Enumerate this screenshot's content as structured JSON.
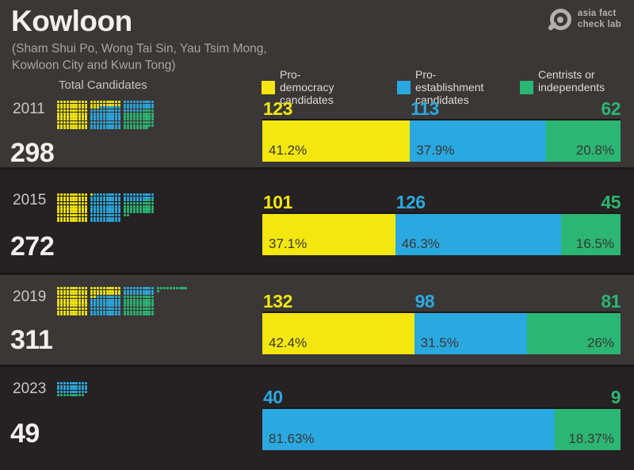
{
  "header": {
    "title": "Kowloon",
    "subtitle": "(Sham Shui Po, Wong Tai Sin, Yau Tsim Mong,\nKowloon City and Kwun Tong)",
    "logo": {
      "name": "asia fact check lab",
      "text": "asia fact\ncheck lab",
      "icon": "magnifier-icon",
      "color": "#b5b0ac"
    }
  },
  "legend": {
    "total_candidates_label": "Total Candidates",
    "items": [
      {
        "label": "Pro-democracy\ncandidates",
        "color": "#f3e70f"
      },
      {
        "label": "Pro-establishment\ncandidates",
        "color": "#2aa9e0"
      },
      {
        "label": "Centrists or\nindependents",
        "color": "#2bb673"
      }
    ]
  },
  "chart_data": {
    "type": "bar",
    "subtype": "horizontal-stacked-percent-with-waffle-pictogram",
    "title": "Kowloon",
    "categories": [
      "2011",
      "2015",
      "2019",
      "2023"
    ],
    "totals": [
      298,
      272,
      311,
      49
    ],
    "series": [
      {
        "name": "Pro-democracy candidates",
        "color": "#f3e70f",
        "values": [
          123,
          101,
          132,
          0
        ],
        "percent_values": [
          41.2,
          37.1,
          42.4,
          0
        ],
        "percent_labels": [
          "41.2%",
          "37.1%",
          "42.4%",
          ""
        ]
      },
      {
        "name": "Pro-establishment candidates",
        "color": "#2aa9e0",
        "values": [
          113,
          126,
          98,
          40
        ],
        "percent_values": [
          37.9,
          46.3,
          31.5,
          81.63
        ],
        "percent_labels": [
          "37.9%",
          "46.3%",
          "31.5%",
          "81.63%"
        ]
      },
      {
        "name": "Centrists or independents",
        "color": "#2bb673",
        "values": [
          62,
          45,
          81,
          9
        ],
        "percent_values": [
          20.8,
          16.5,
          26.0,
          18.37
        ],
        "percent_labels": [
          "20.8%",
          "16.5%",
          "26%",
          "18.37%"
        ]
      }
    ],
    "legend_position": "top-right",
    "waffle": {
      "dots_per_block": 100,
      "columns_per_block": 10,
      "fill_order": "row-major"
    }
  },
  "colors": {
    "band_light": "#3a3736",
    "band_dark": "#262122",
    "separator": "#1b1817",
    "title_text": "#f2f0ee",
    "subtitle_text": "#a9a4a0",
    "year_text": "#ccc8c4",
    "total_text": "#f2f0ee",
    "percent_text": "#3a3634",
    "legend_text": "#dedad6"
  }
}
